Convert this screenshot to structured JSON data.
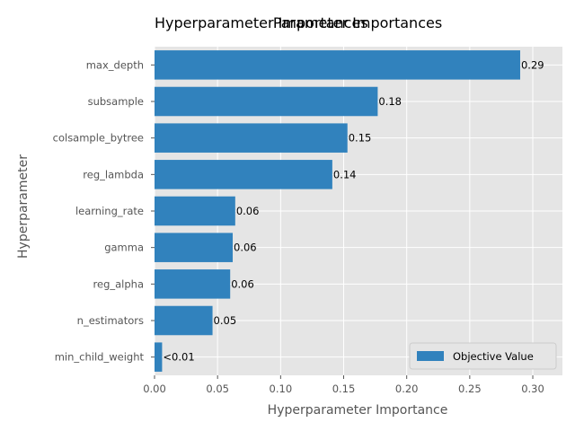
{
  "chart_data": {
    "type": "bar",
    "orientation": "horizontal",
    "titles": [
      "Hyperparameter Importances",
      "Parameter Importances"
    ],
    "xlabel": "Hyperparameter Importance",
    "ylabel": "Hyperparameter",
    "xlim": [
      0,
      0.3235
    ],
    "xticks": [
      0.0,
      0.05,
      0.1,
      0.15,
      0.2,
      0.25,
      0.3
    ],
    "xtick_labels": [
      "0.00",
      "0.05",
      "0.10",
      "0.15",
      "0.20",
      "0.25",
      "0.30"
    ],
    "grid": true,
    "legend_position": "lower-right",
    "categories": [
      "max_depth",
      "subsample",
      "colsample_bytree",
      "reg_lambda",
      "learning_rate",
      "gamma",
      "reg_alpha",
      "n_estimators",
      "min_child_weight"
    ],
    "series": [
      {
        "name": "Objective Value",
        "color": "#3182bd",
        "values": [
          0.29,
          0.177,
          0.153,
          0.141,
          0.064,
          0.062,
          0.06,
          0.046,
          0.006
        ],
        "labels": [
          "0.29",
          "0.18",
          "0.15",
          "0.14",
          "0.06",
          "0.06",
          "0.06",
          "0.05",
          "<0.01"
        ]
      }
    ],
    "colors": {
      "plot_background": "#e5e5e5",
      "grid": "#ffffff"
    }
  }
}
